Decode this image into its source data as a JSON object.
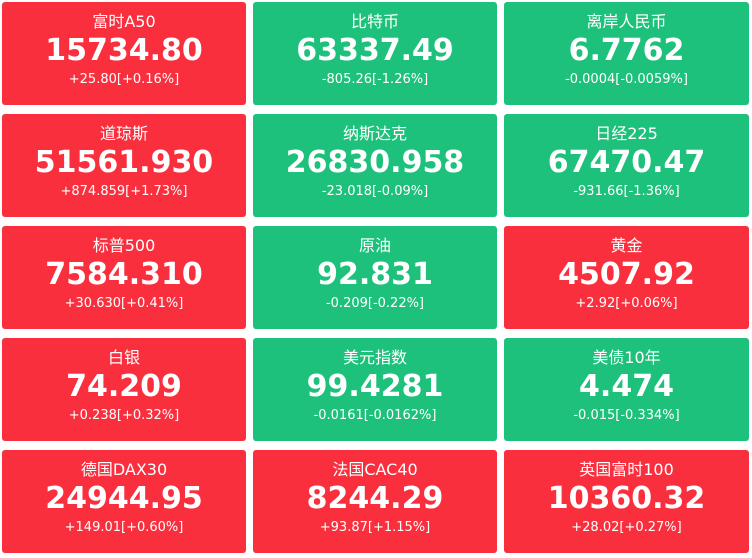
{
  "tiles": [
    {
      "name": "富时A50",
      "price": "15734.80",
      "change": "+25.80[+0.16%]",
      "color": "#fa2f3e"
    },
    {
      "name": "比特币",
      "price": "63337.49",
      "change": "-805.26[-1.26%]",
      "color": "#1ec17b"
    },
    {
      "name": "离岸人民币",
      "price": "6.7762",
      "change": "-0.0004[-0.0059%]",
      "color": "#1ec17b"
    },
    {
      "name": "道琼斯",
      "price": "51561.930",
      "change": "+874.859[+1.73%]",
      "color": "#fa2f3e"
    },
    {
      "name": "纳斯达克",
      "price": "26830.958",
      "change": "-23.018[-0.09%]",
      "color": "#1ec17b"
    },
    {
      "name": "日经225",
      "price": "67470.47",
      "change": "-931.66[-1.36%]",
      "color": "#1ec17b"
    },
    {
      "name": "标普500",
      "price": "7584.310",
      "change": "+30.630[+0.41%]",
      "color": "#fa2f3e"
    },
    {
      "name": "原油",
      "price": "92.831",
      "change": "-0.209[-0.22%]",
      "color": "#1ec17b"
    },
    {
      "name": "黄金",
      "price": "4507.92",
      "change": "+2.92[+0.06%]",
      "color": "#fa2f3e"
    },
    {
      "name": "白银",
      "price": "74.209",
      "change": "+0.238[+0.32%]",
      "color": "#fa2f3e"
    },
    {
      "name": "美元指数",
      "price": "99.4281",
      "change": "-0.0161[-0.0162%]",
      "color": "#1ec17b"
    },
    {
      "name": "美债10年",
      "price": "4.474",
      "change": "-0.015[-0.334%]",
      "color": "#1ec17b"
    },
    {
      "name": "德国DAX30",
      "price": "24944.95",
      "change": "+149.01[+0.60%]",
      "color": "#fa2f3e"
    },
    {
      "name": "法国CAC40",
      "price": "8244.29",
      "change": "+93.87[+1.15%]",
      "color": "#fa2f3e"
    },
    {
      "name": "英国富时100",
      "price": "10360.32",
      "change": "+28.02[+0.27%]",
      "color": "#fa2f3e"
    }
  ]
}
